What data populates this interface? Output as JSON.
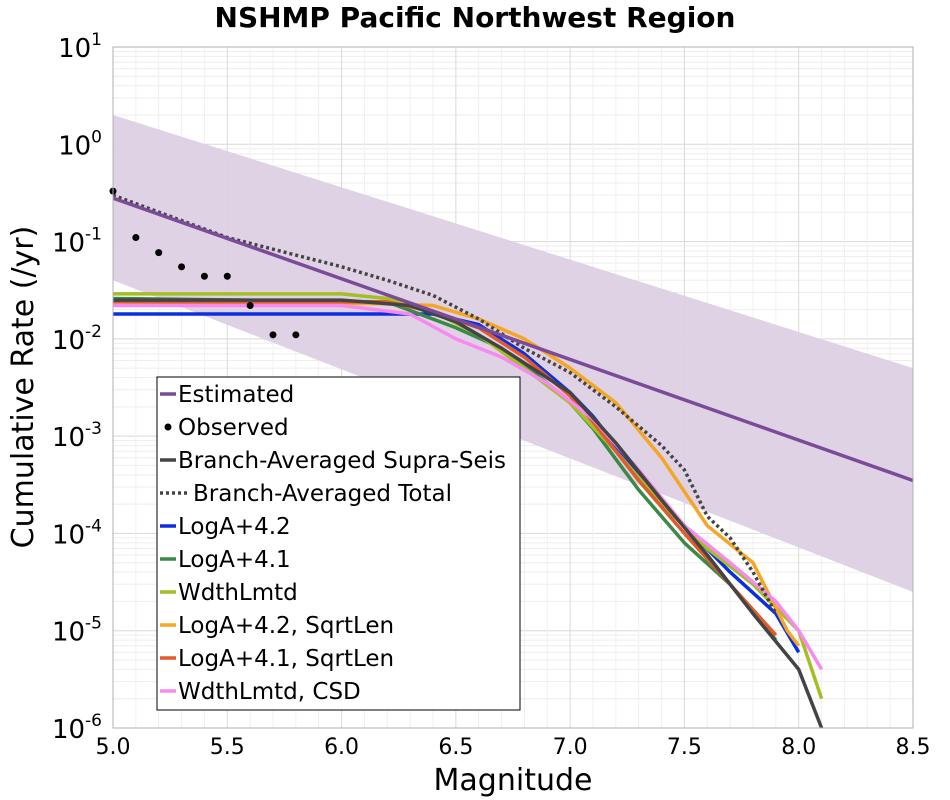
{
  "chart_data": {
    "type": "line",
    "title": "NSHMP Pacific Northwest Region",
    "xlabel": "Magnitude",
    "ylabel": "Cumulative Rate (/yr)",
    "xlim": [
      5.0,
      8.5
    ],
    "ylim_log10": [
      -6,
      1
    ],
    "yscale": "log",
    "grid": true,
    "legend_placement": "lower-left",
    "x_ticks": [
      "5.0",
      "5.5",
      "6.0",
      "6.5",
      "7.0",
      "7.5",
      "8.0",
      "8.5"
    ],
    "y_ticks": [
      {
        "base": "10",
        "exp": "1",
        "value": 10
      },
      {
        "base": "10",
        "exp": "0",
        "value": 1
      },
      {
        "base": "10",
        "exp": "-1",
        "value": 0.1
      },
      {
        "base": "10",
        "exp": "-2",
        "value": 0.01
      },
      {
        "base": "10",
        "exp": "-3",
        "value": 0.001
      },
      {
        "base": "10",
        "exp": "-4",
        "value": 0.0001
      },
      {
        "base": "10",
        "exp": "-5",
        "value": 1e-05
      },
      {
        "base": "10",
        "exp": "-6",
        "value": 1e-06
      }
    ],
    "estimated_band": {
      "color": "#dcd0e3",
      "upper": [
        [
          5.0,
          2.0
        ],
        [
          8.5,
          0.005
        ]
      ],
      "lower": [
        [
          5.0,
          0.04
        ],
        [
          8.5,
          2.5e-05
        ]
      ]
    },
    "series": [
      {
        "name": "Estimated",
        "color": "#7b4a99",
        "style": "solid",
        "x": [
          5.0,
          8.5
        ],
        "y": [
          0.28,
          0.00035
        ]
      },
      {
        "name": "Observed",
        "color": "#000000",
        "style": "points",
        "x": [
          5.0,
          5.1,
          5.2,
          5.3,
          5.4,
          5.5,
          5.6,
          5.7,
          5.8
        ],
        "y": [
          0.33,
          0.11,
          0.077,
          0.055,
          0.044,
          0.044,
          0.022,
          0.011,
          0.011
        ]
      },
      {
        "name": "Branch-Averaged Supra-Seis",
        "color": "#444444",
        "style": "solid",
        "x": [
          5.0,
          6.0,
          6.3,
          6.5,
          6.7,
          7.0,
          7.2,
          7.4,
          7.6,
          7.8,
          8.0,
          8.1
        ],
        "y": [
          0.025,
          0.025,
          0.022,
          0.015,
          0.008,
          0.0028,
          0.00085,
          0.00022,
          6e-05,
          1.5e-05,
          4e-06,
          1e-06
        ]
      },
      {
        "name": "Branch-Averaged Total",
        "color": "#444444",
        "style": "dotted",
        "x": [
          5.0,
          5.5,
          6.0,
          6.2,
          6.4,
          6.6,
          6.8,
          7.0,
          7.2,
          7.4,
          7.5,
          7.6,
          7.7,
          7.8,
          7.9
        ],
        "y": [
          0.3,
          0.11,
          0.055,
          0.04,
          0.028,
          0.016,
          0.008,
          0.0045,
          0.002,
          0.0008,
          0.00045,
          0.00015,
          9e-05,
          4e-05,
          1.5e-05
        ]
      },
      {
        "name": "LogA+4.2",
        "color": "#0b2ee0",
        "style": "solid",
        "x": [
          5.0,
          6.2,
          6.4,
          6.6,
          6.8,
          7.0,
          7.1,
          7.3,
          7.5,
          7.7,
          7.9,
          8.0
        ],
        "y": [
          0.018,
          0.018,
          0.018,
          0.014,
          0.007,
          0.0028,
          0.0016,
          0.0004,
          0.00012,
          4e-05,
          1.5e-05,
          6e-06
        ]
      },
      {
        "name": "LogA+4.1",
        "color": "#3a8a45",
        "style": "solid",
        "x": [
          5.0,
          6.2,
          6.5,
          6.7,
          6.9,
          7.0,
          7.1,
          7.3,
          7.5,
          7.7,
          7.9
        ],
        "y": [
          0.026,
          0.024,
          0.013,
          0.008,
          0.0035,
          0.0022,
          0.0012,
          0.00028,
          8e-05,
          3e-05,
          8e-06
        ]
      },
      {
        "name": "WdthLmtd",
        "color": "#a4be24",
        "style": "solid",
        "x": [
          5.0,
          6.0,
          6.2,
          6.4,
          6.6,
          6.8,
          7.0,
          7.2,
          7.4,
          7.6,
          7.8,
          8.0,
          8.1
        ],
        "y": [
          0.029,
          0.029,
          0.026,
          0.019,
          0.011,
          0.005,
          0.0022,
          0.0007,
          0.0002,
          7e-05,
          3e-05,
          1e-05,
          2e-06
        ]
      },
      {
        "name": "LogA+4.2, SqrtLen",
        "color": "#f5a623",
        "style": "solid",
        "x": [
          5.0,
          6.2,
          6.4,
          6.6,
          6.8,
          7.0,
          7.2,
          7.4,
          7.6,
          7.8,
          7.95,
          8.0
        ],
        "y": [
          0.024,
          0.023,
          0.022,
          0.016,
          0.01,
          0.005,
          0.0022,
          0.0006,
          0.00012,
          5e-05,
          1e-05,
          7e-06
        ]
      },
      {
        "name": "LogA+4.1, SqrtLen",
        "color": "#e05a2b",
        "style": "solid",
        "x": [
          5.0,
          6.2,
          6.4,
          6.6,
          6.8,
          7.0,
          7.1,
          7.3,
          7.5,
          7.7,
          7.9
        ],
        "y": [
          0.024,
          0.024,
          0.019,
          0.013,
          0.0065,
          0.0026,
          0.0014,
          0.00035,
          0.0001,
          3e-05,
          9e-06
        ]
      },
      {
        "name": "WdthLmtd, CSD",
        "color": "#f789f0",
        "style": "solid",
        "x": [
          5.0,
          6.0,
          6.3,
          6.5,
          6.7,
          6.9,
          7.1,
          7.3,
          7.5,
          7.7,
          7.9,
          8.0,
          8.1
        ],
        "y": [
          0.022,
          0.022,
          0.018,
          0.01,
          0.0065,
          0.0035,
          0.0015,
          0.00045,
          0.00012,
          5e-05,
          2e-05,
          1e-05,
          4e-06
        ]
      }
    ],
    "legend": [
      {
        "label": "Estimated",
        "marker": "line",
        "color": "#7b4a99"
      },
      {
        "label": "Observed",
        "marker": "dot",
        "color": "#000000"
      },
      {
        "label": "Branch-Averaged Supra-Seis",
        "marker": "line",
        "color": "#444444"
      },
      {
        "label": "Branch-Averaged Total",
        "marker": "dotted",
        "color": "#444444"
      },
      {
        "label": "LogA+4.2",
        "marker": "line",
        "color": "#0b2ee0"
      },
      {
        "label": "LogA+4.1",
        "marker": "line",
        "color": "#3a8a45"
      },
      {
        "label": "WdthLmtd",
        "marker": "line",
        "color": "#a4be24"
      },
      {
        "label": "LogA+4.2, SqrtLen",
        "marker": "line",
        "color": "#f5a623"
      },
      {
        "label": "LogA+4.1, SqrtLen",
        "marker": "line",
        "color": "#e05a2b"
      },
      {
        "label": "WdthLmtd, CSD",
        "marker": "line",
        "color": "#f789f0"
      }
    ]
  }
}
